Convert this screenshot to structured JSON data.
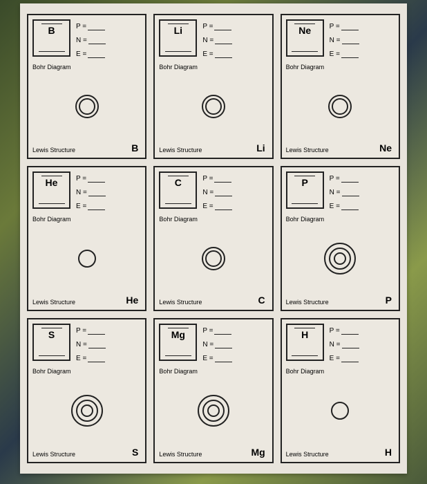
{
  "labels": {
    "p": "P =",
    "n": "N =",
    "e": "E =",
    "bohr": "Bohr Diagram",
    "lewis": "Lewis Structure"
  },
  "elements": [
    {
      "symbol": "B",
      "lewis": "B",
      "rings": 2,
      "style": "double"
    },
    {
      "symbol": "Li",
      "lewis": "Li",
      "rings": 2,
      "style": "double"
    },
    {
      "symbol": "Ne",
      "lewis": "Ne",
      "rings": 2,
      "style": "double"
    },
    {
      "symbol": "He",
      "lewis": "He",
      "rings": 1,
      "style": "single"
    },
    {
      "symbol": "C",
      "lewis": "C",
      "rings": 2,
      "style": "double"
    },
    {
      "symbol": "P",
      "lewis": "P",
      "rings": 3,
      "style": "triple"
    },
    {
      "symbol": "S",
      "lewis": "S",
      "rings": 3,
      "style": "triple"
    },
    {
      "symbol": "Mg",
      "lewis": "Mg",
      "rings": 3,
      "style": "triple"
    },
    {
      "symbol": "H",
      "lewis": "H",
      "rings": 1,
      "style": "single"
    }
  ],
  "styling": {
    "paper_bg": "#e8e4dc",
    "border_color": "#222222",
    "font_small": 9,
    "font_symbol": 14,
    "ring_stroke": "#222222",
    "ring_stroke_width": 2
  }
}
